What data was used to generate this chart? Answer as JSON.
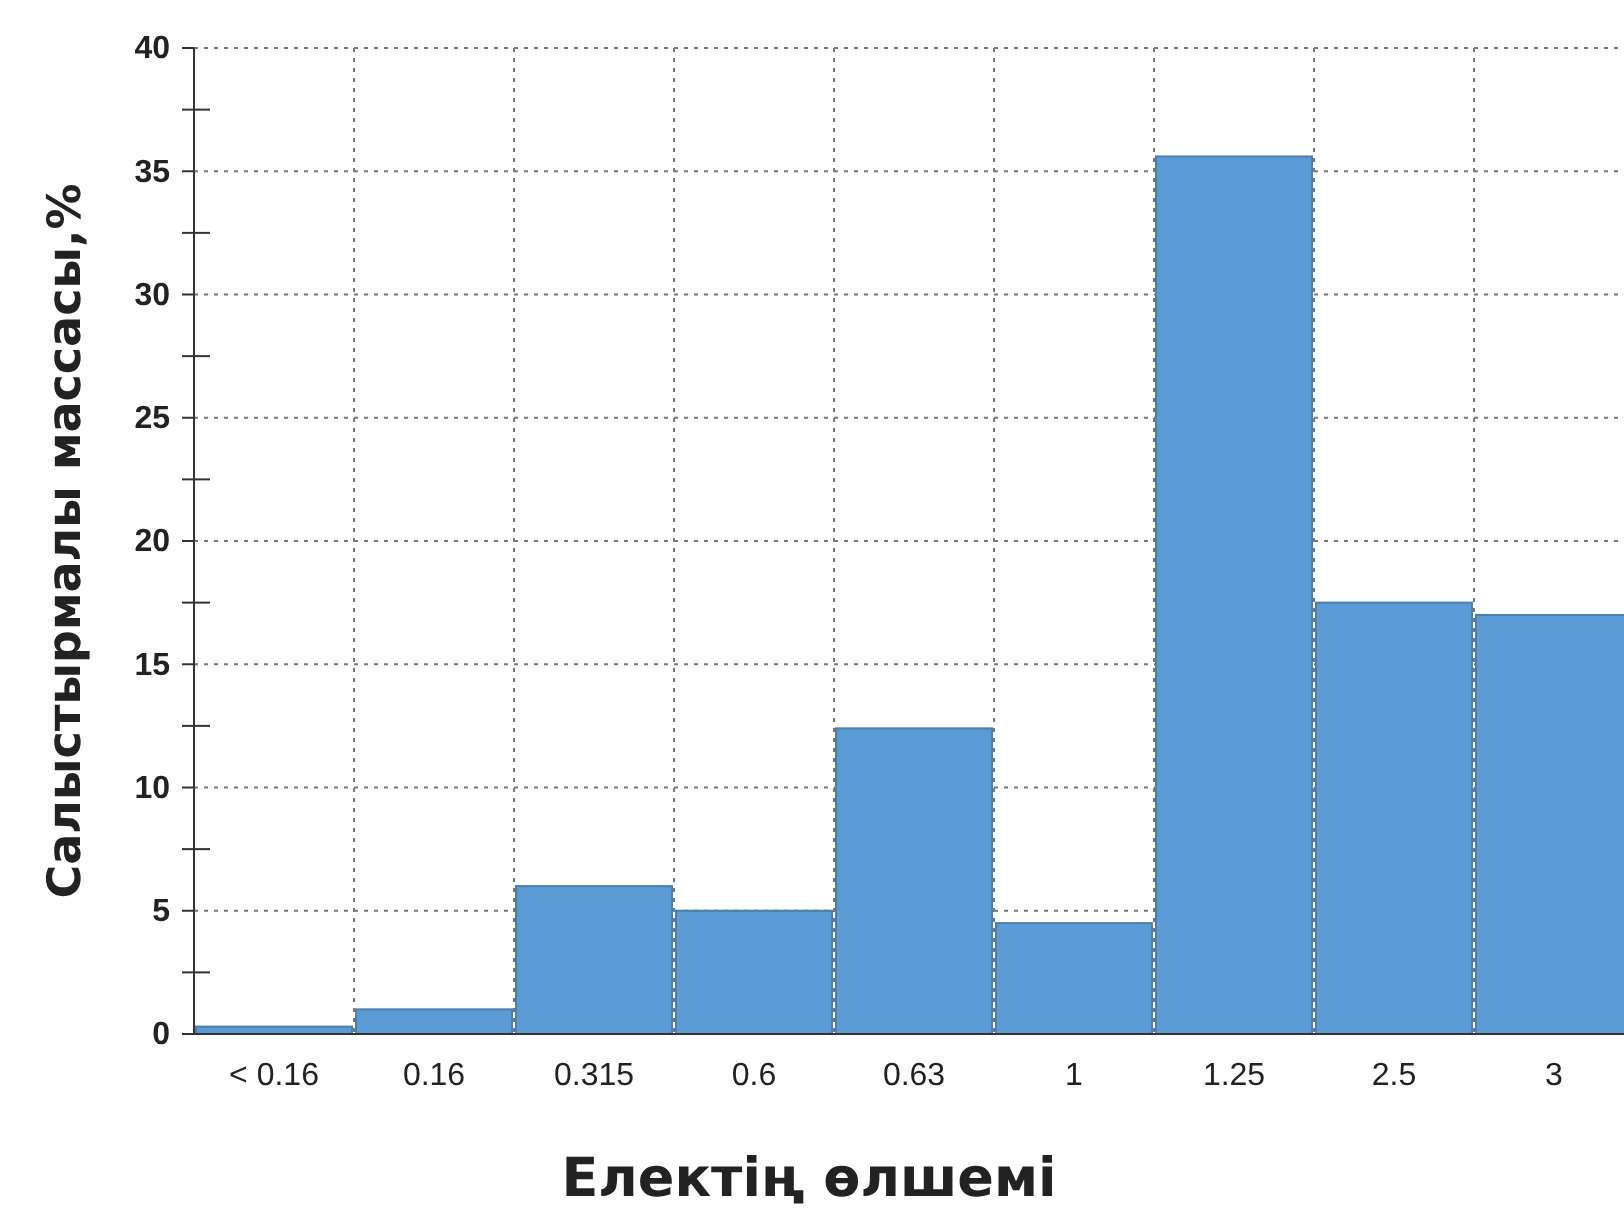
{
  "chart_data": {
    "type": "bar",
    "xlabel": "Електің өлшемі",
    "ylabel": "Салыстырмалы массасы,%",
    "categories": [
      "< 0.16",
      "0.16",
      "0.315",
      "0.6",
      "0.63",
      "1",
      "1.25",
      "2.5",
      "3"
    ],
    "values": [
      0.3,
      1,
      6,
      5,
      12.4,
      4.5,
      35.6,
      17.5,
      17
    ],
    "color": "#5b9bd5",
    "ylim": [
      0,
      40
    ],
    "yticks": [
      0,
      {
        "value": 2.5,
        "label": null
      },
      5,
      {
        "value": 7.5,
        "label": null
      },
      10,
      {
        "value": 12.5,
        "label": null
      },
      15,
      {
        "value": 17.5,
        "label": null
      },
      20,
      {
        "value": 22.5,
        "label": null
      },
      25,
      {
        "value": 27.5,
        "label": null
      },
      30,
      {
        "value": 32.5,
        "label": null
      },
      35,
      {
        "value": 37.5,
        "label": null
      },
      40
    ],
    "grid": true
  }
}
